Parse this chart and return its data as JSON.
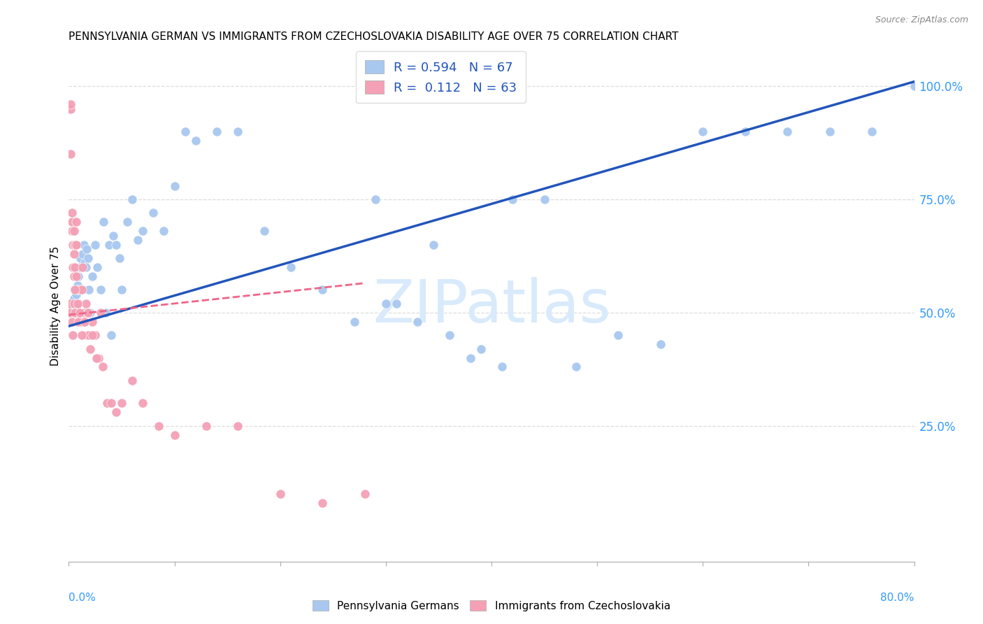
{
  "title": "PENNSYLVANIA GERMAN VS IMMIGRANTS FROM CZECHOSLOVAKIA DISABILITY AGE OVER 75 CORRELATION CHART",
  "source": "Source: ZipAtlas.com",
  "ylabel": "Disability Age Over 75",
  "yticks_right": [
    "25.0%",
    "50.0%",
    "75.0%",
    "100.0%"
  ],
  "yticks_right_vals": [
    0.25,
    0.5,
    0.75,
    1.0
  ],
  "legend_labels": [
    "Pennsylvania Germans",
    "Immigrants from Czechoslovakia"
  ],
  "blue_color": "#A8C8F0",
  "pink_color": "#F4A0B5",
  "blue_line_color": "#2255BB",
  "pink_line_color": "#EE6688",
  "ref_line_color": "#CCCCCC",
  "watermark_color": "#D8EAFB",
  "xlim": [
    0.0,
    0.8
  ],
  "ylim": [
    -0.05,
    1.08
  ],
  "blue_line_x": [
    0.0,
    0.8
  ],
  "blue_line_y": [
    0.47,
    1.01
  ],
  "pink_line_x": [
    0.0,
    0.28
  ],
  "pink_line_y": [
    0.495,
    0.565
  ],
  "ref_line_x": [
    0.0,
    0.8
  ],
  "ref_line_y": [
    0.47,
    1.01
  ],
  "blue_x": [
    0.002,
    0.003,
    0.004,
    0.005,
    0.005,
    0.006,
    0.007,
    0.008,
    0.009,
    0.01,
    0.011,
    0.012,
    0.013,
    0.014,
    0.015,
    0.016,
    0.017,
    0.018,
    0.019,
    0.02,
    0.022,
    0.025,
    0.027,
    0.03,
    0.033,
    0.035,
    0.038,
    0.04,
    0.042,
    0.045,
    0.048,
    0.05,
    0.055,
    0.06,
    0.065,
    0.07,
    0.08,
    0.09,
    0.1,
    0.11,
    0.12,
    0.14,
    0.16,
    0.185,
    0.21,
    0.24,
    0.27,
    0.3,
    0.33,
    0.36,
    0.39,
    0.42,
    0.45,
    0.48,
    0.52,
    0.56,
    0.6,
    0.64,
    0.68,
    0.72,
    0.76,
    0.8,
    0.38,
    0.41,
    0.29,
    0.31,
    0.345
  ],
  "blue_y": [
    0.5,
    0.51,
    0.52,
    0.5,
    0.53,
    0.55,
    0.54,
    0.56,
    0.58,
    0.6,
    0.62,
    0.55,
    0.63,
    0.65,
    0.61,
    0.6,
    0.64,
    0.62,
    0.55,
    0.5,
    0.58,
    0.65,
    0.6,
    0.55,
    0.7,
    0.5,
    0.65,
    0.45,
    0.67,
    0.65,
    0.62,
    0.55,
    0.7,
    0.75,
    0.66,
    0.68,
    0.72,
    0.68,
    0.78,
    0.9,
    0.88,
    0.9,
    0.9,
    0.68,
    0.6,
    0.55,
    0.48,
    0.52,
    0.48,
    0.45,
    0.42,
    0.75,
    0.75,
    0.38,
    0.45,
    0.43,
    0.9,
    0.9,
    0.9,
    0.9,
    0.9,
    1.0,
    0.4,
    0.38,
    0.75,
    0.52,
    0.65
  ],
  "pink_x": [
    0.001,
    0.001,
    0.002,
    0.002,
    0.002,
    0.003,
    0.003,
    0.003,
    0.004,
    0.004,
    0.005,
    0.005,
    0.005,
    0.006,
    0.006,
    0.007,
    0.007,
    0.008,
    0.008,
    0.009,
    0.01,
    0.011,
    0.012,
    0.013,
    0.014,
    0.015,
    0.016,
    0.017,
    0.018,
    0.019,
    0.02,
    0.022,
    0.025,
    0.028,
    0.032,
    0.036,
    0.04,
    0.045,
    0.05,
    0.06,
    0.07,
    0.085,
    0.1,
    0.13,
    0.16,
    0.2,
    0.24,
    0.28,
    0.003,
    0.004,
    0.005,
    0.006,
    0.006,
    0.007,
    0.008,
    0.009,
    0.01,
    0.012,
    0.015,
    0.018,
    0.022,
    0.026,
    0.03
  ],
  "pink_y": [
    0.5,
    0.52,
    0.95,
    0.96,
    0.85,
    0.7,
    0.68,
    0.72,
    0.65,
    0.6,
    0.68,
    0.63,
    0.58,
    0.65,
    0.6,
    0.7,
    0.65,
    0.55,
    0.5,
    0.52,
    0.55,
    0.48,
    0.55,
    0.6,
    0.5,
    0.48,
    0.52,
    0.45,
    0.5,
    0.45,
    0.42,
    0.48,
    0.45,
    0.4,
    0.38,
    0.3,
    0.3,
    0.28,
    0.3,
    0.35,
    0.3,
    0.25,
    0.23,
    0.25,
    0.25,
    0.1,
    0.08,
    0.1,
    0.48,
    0.45,
    0.52,
    0.5,
    0.55,
    0.58,
    0.52,
    0.48,
    0.5,
    0.45,
    0.48,
    0.5,
    0.45,
    0.4,
    0.5
  ]
}
